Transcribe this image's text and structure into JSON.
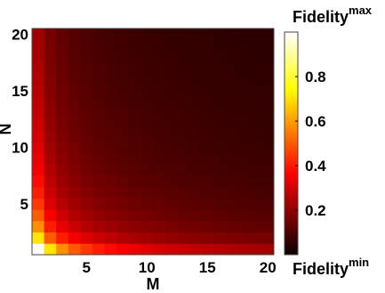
{
  "chart_data": {
    "type": "heatmap",
    "xlabel": "M",
    "ylabel": "N",
    "x_range": [
      1,
      20
    ],
    "y_range": [
      1,
      20
    ],
    "x_ticks": [
      5,
      10,
      15,
      20
    ],
    "y_ticks": [
      5,
      10,
      15,
      20
    ],
    "value_formula": "1/sqrt(M*N)",
    "colormap": "hot",
    "colorbar": {
      "top_label": "Fidelity",
      "top_sup": "max",
      "bottom_label": "Fidelity",
      "bottom_sup": "min",
      "ticks": [
        0.2,
        0.4,
        0.6,
        0.8
      ],
      "range": [
        0,
        1
      ]
    }
  }
}
